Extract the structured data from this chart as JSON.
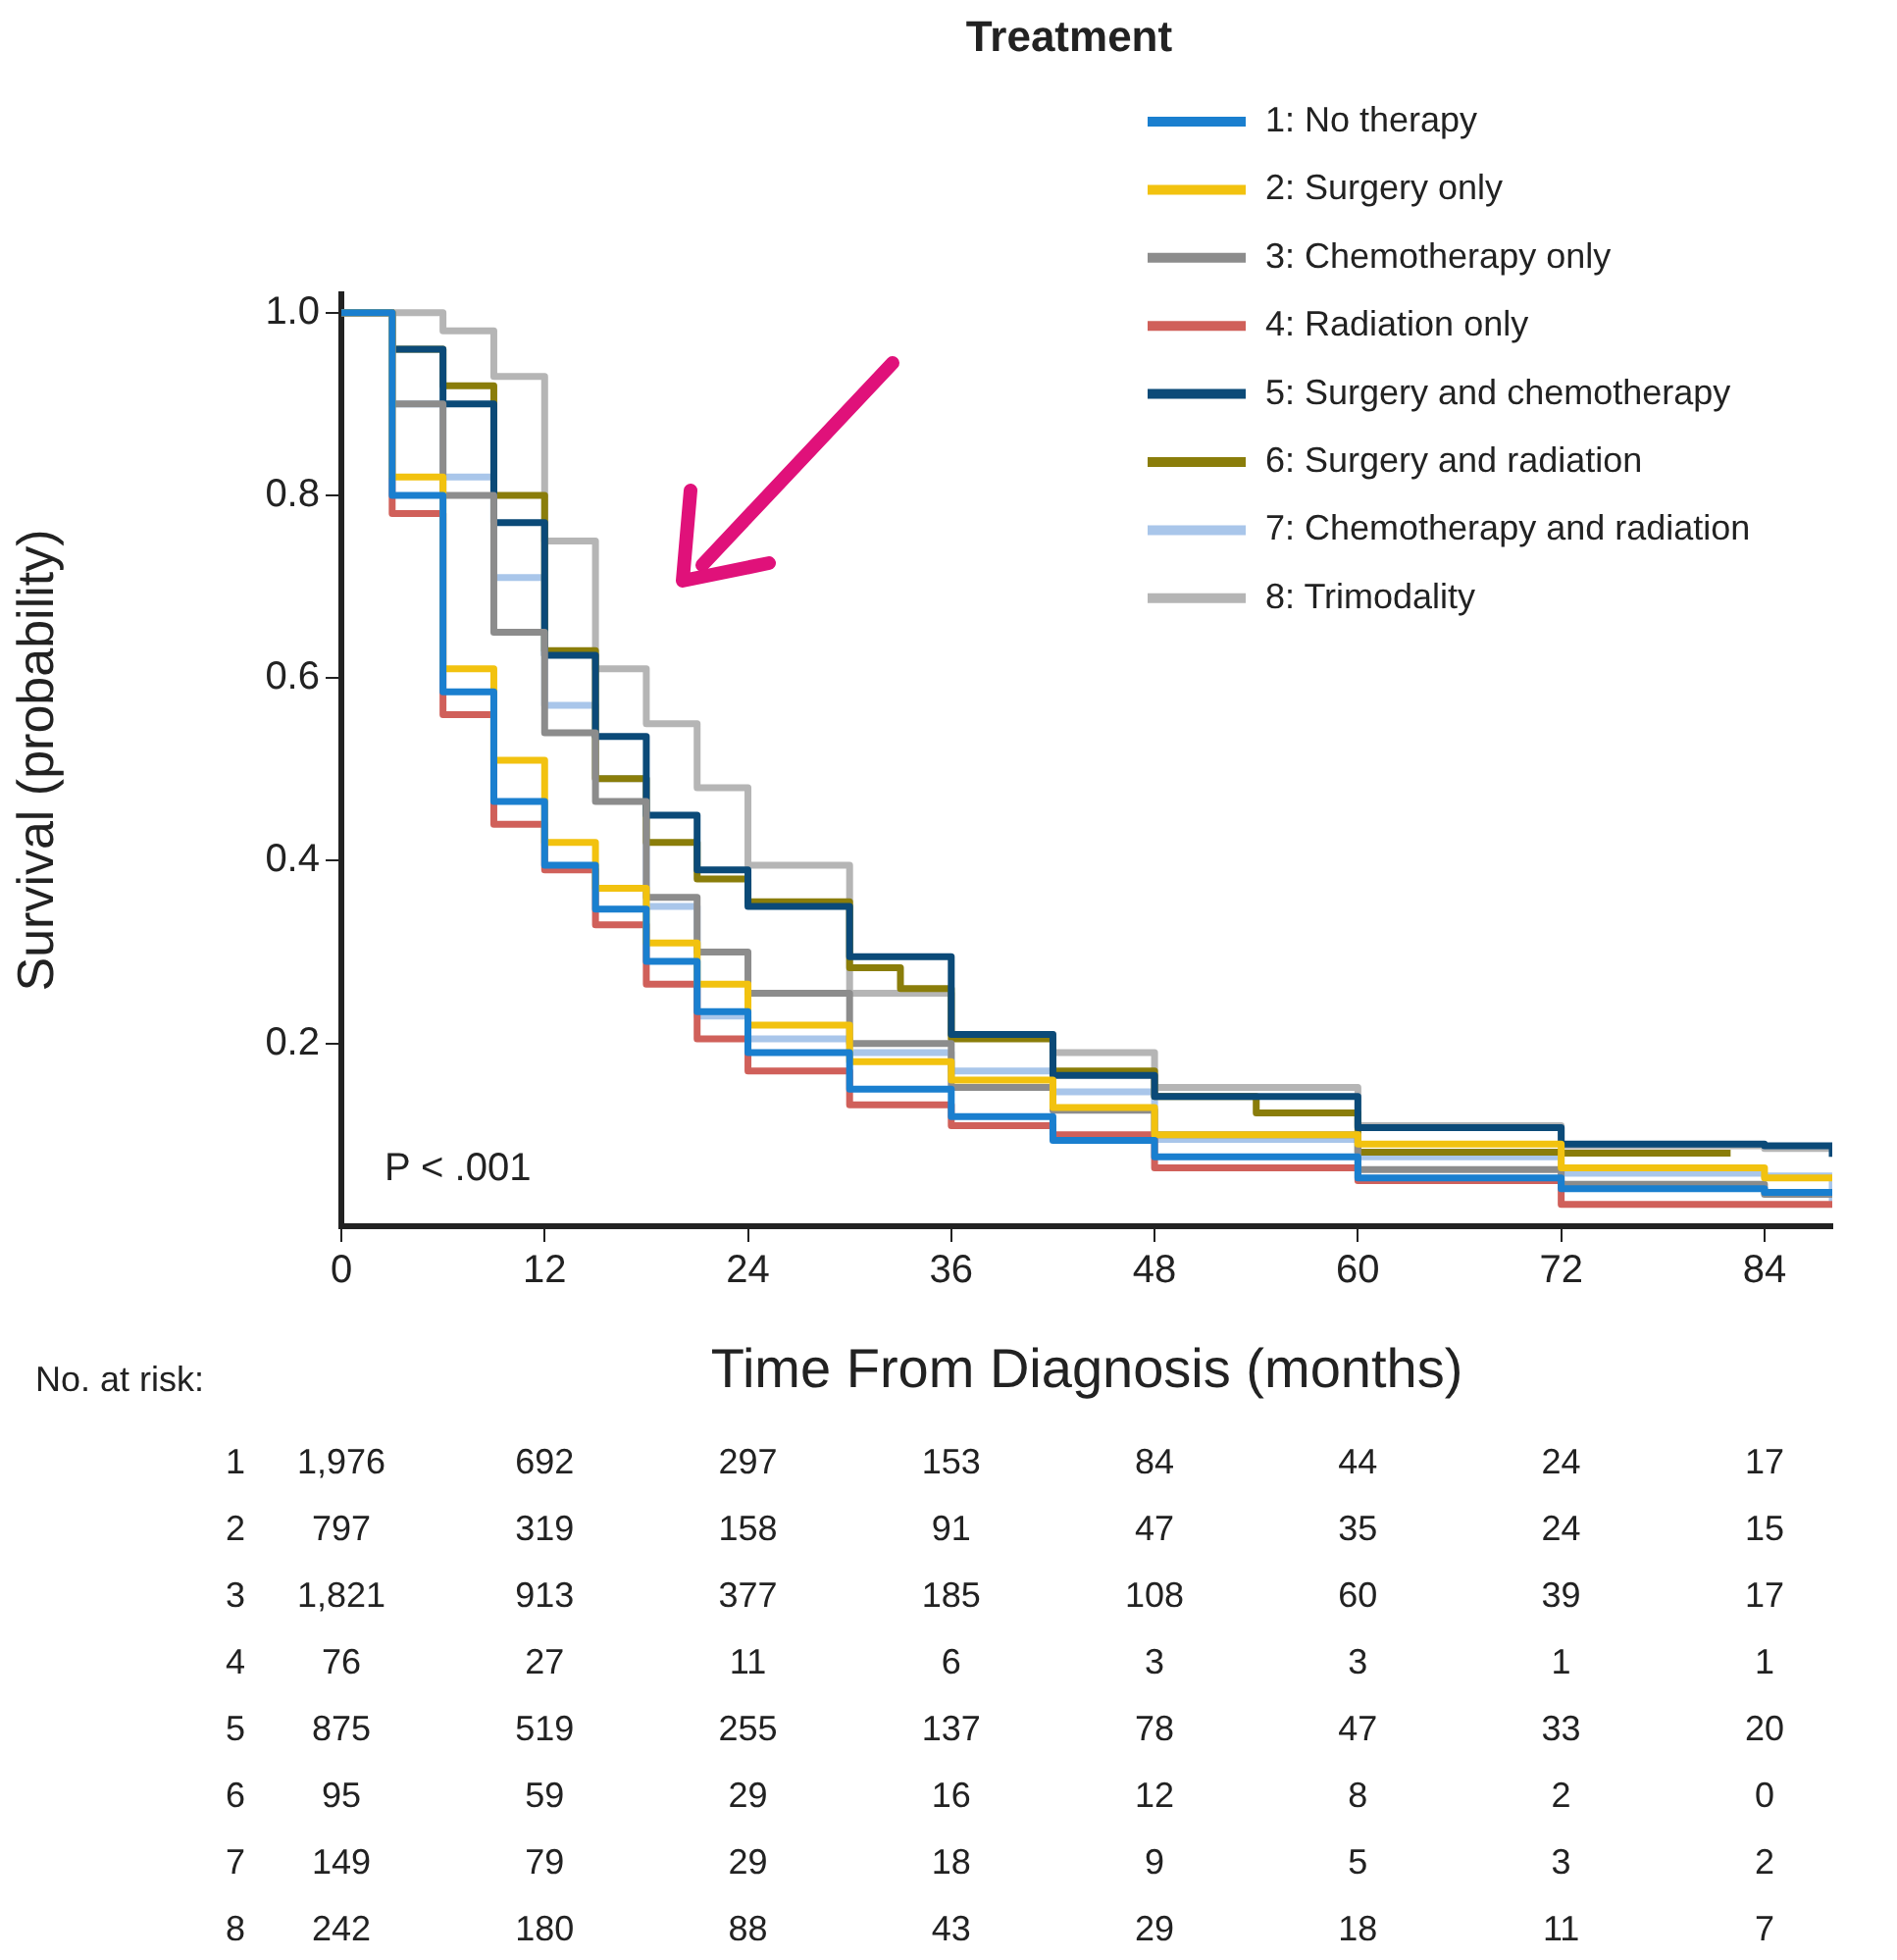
{
  "chart_data": {
    "type": "step",
    "legend_title": "Treatment",
    "xlabel": "Time From Diagnosis (months)",
    "ylabel": "Survival (probability)",
    "x": [
      0,
      3,
      6,
      9,
      12,
      15,
      18,
      21,
      24,
      30,
      36,
      42,
      48,
      60,
      72,
      84,
      88
    ],
    "xlim": [
      0,
      88
    ],
    "xticks": [
      0,
      12,
      24,
      36,
      48,
      60,
      72,
      84
    ],
    "ylim": [
      0,
      1.02
    ],
    "yticks": [
      0.2,
      0.4,
      0.6,
      0.8,
      {
        "value": 1,
        "label": "1.0"
      }
    ],
    "grid": false,
    "legend": "top right",
    "line_style": "solid",
    "marker": "none",
    "series": [
      {
        "name": "1: No therapy",
        "color": "#1a7fcf",
        "values": [
          1,
          0.8,
          0.585,
          0.465,
          0.395,
          0.347,
          0.29,
          0.235,
          0.19,
          0.15,
          0.12,
          0.094,
          0.076,
          0.053,
          0.041,
          0.037,
          0.035
        ]
      },
      {
        "name": "2: Surgery only",
        "color": "#f2c20f",
        "values": [
          1,
          0.82,
          0.61,
          0.51,
          0.42,
          0.37,
          0.31,
          0.265,
          0.22,
          0.18,
          0.16,
          0.13,
          0.1,
          0.09,
          0.064,
          0.053,
          0.05
        ]
      },
      {
        "name": "3: Chemotherapy only",
        "color": "#8c8c8c",
        "values": [
          1,
          0.9,
          0.8,
          0.65,
          0.54,
          0.465,
          0.36,
          0.3,
          0.255,
          0.2,
          0.152,
          0.127,
          0.1,
          0.062,
          0.046,
          0.035,
          0.035
        ]
      },
      {
        "name": "4: Radiation only",
        "color": "#d0605a",
        "values": [
          1,
          0.78,
          0.56,
          0.44,
          0.39,
          0.33,
          0.265,
          0.205,
          0.17,
          0.133,
          0.11,
          0.1,
          0.064,
          0.05,
          0.024,
          0.024,
          0.024
        ]
      },
      {
        "name": "5: Surgery and chemotherapy",
        "color": "#0b4a78",
        "values": [
          1,
          0.96,
          0.9,
          0.77,
          0.625,
          0.536,
          0.45,
          0.39,
          0.35,
          0.295,
          0.21,
          0.165,
          0.142,
          0.108,
          0.09,
          0.088,
          0.076
        ]
      },
      {
        "name": "6: Surgery and radiation",
        "color": "#8a7d0a",
        "x": [
          0,
          3,
          6,
          9,
          12,
          15,
          18,
          21,
          24,
          30,
          33,
          36,
          42,
          48,
          54,
          60,
          72,
          82
        ],
        "values": [
          1,
          0.96,
          0.92,
          0.8,
          0.63,
          0.49,
          0.42,
          0.38,
          0.355,
          0.283,
          0.26,
          0.205,
          0.17,
          0.142,
          0.124,
          0.081,
          0.08,
          0.08
        ]
      },
      {
        "name": "7: Chemotherapy and radiation",
        "color": "#a9c6ea",
        "values": [
          1,
          0.9,
          0.82,
          0.71,
          0.57,
          0.49,
          0.35,
          0.23,
          0.205,
          0.19,
          0.17,
          0.147,
          0.095,
          0.076,
          0.058,
          0.055,
          0.027
        ]
      },
      {
        "name": "8: Trimodality",
        "color": "#b5b5b5",
        "values": [
          1,
          1,
          0.98,
          0.93,
          0.75,
          0.61,
          0.55,
          0.48,
          0.395,
          0.255,
          0.21,
          0.19,
          0.152,
          0.11,
          0.088,
          0.085,
          0.085
        ]
      }
    ],
    "annotations": [
      "P < .001",
      "No. at risk:",
      "1 1,976 692 297 153 84 44 24 17",
      "2 797 319 158 91 47 35 24 15",
      "3 1,821 913 377 185 108 60 39 17",
      "4 76 27 11 6 3 3 1 1",
      "5 875 519 255 137 78 47 33 20",
      "6 95 59 29 16 12 8 2 0",
      "7 149 79 29 18 9 5 3 2",
      "8 242 180 88 43 29 18 11 7"
    ]
  }
}
